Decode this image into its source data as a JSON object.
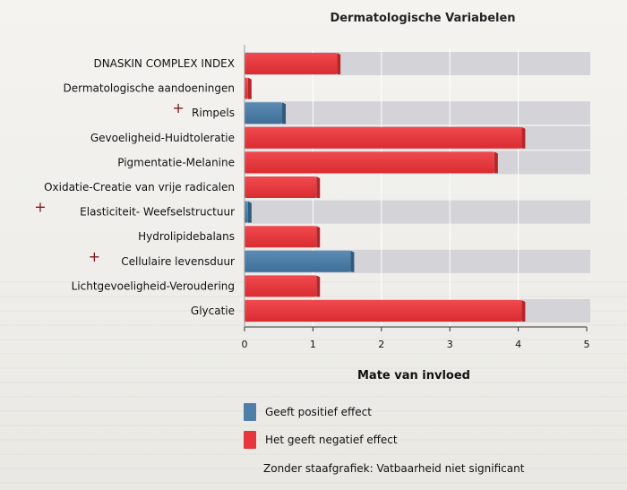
{
  "chart_data": {
    "type": "bar",
    "orientation": "horizontal",
    "title": "Dermatologische Variabelen",
    "xlabel": "Mate van invloed",
    "ylabel": "",
    "xlim": [
      0,
      5
    ],
    "xticks": [
      "0",
      "1",
      "2",
      "3",
      "4",
      "5"
    ],
    "categories": [
      "DNASKIN COMPLEX INDEX",
      "Dermatologische aandoeningen",
      "Rimpels",
      "Gevoeligheid-Huidtoleratie",
      "Pigmentatie-Melanine",
      "Oxidatie-Creatie van vrije radicalen",
      "Elasticiteit- Weefselstructuur",
      "Hydrolipidebalans",
      "Cellulaire levensduur",
      "Lichtgevoeligheid-Veroudering",
      "Glycatie"
    ],
    "values": [
      1.35,
      0.05,
      0.55,
      4.05,
      3.65,
      1.05,
      0.05,
      1.05,
      1.55,
      1.05,
      4.05
    ],
    "effects": [
      "negative",
      "negative",
      "positive",
      "negative",
      "negative",
      "negative",
      "positive",
      "negative",
      "positive",
      "negative",
      "negative"
    ],
    "background_bar": [
      true,
      false,
      true,
      true,
      true,
      false,
      true,
      false,
      true,
      false,
      true
    ],
    "handwritten_marks": [
      false,
      false,
      true,
      false,
      false,
      false,
      true,
      false,
      true,
      false,
      false
    ],
    "mark_glyph": "+",
    "colors": {
      "positive": "#4d7fa8",
      "negative": "#e8373c",
      "background": "#d3d3d8",
      "grid": "#ffffff",
      "mark": "#7a1a1a"
    },
    "legend": [
      {
        "label": "Geeft positief effect",
        "effect": "positive"
      },
      {
        "label": "Het geeft negatief effect",
        "effect": "negative"
      }
    ],
    "note": "Zonder staafgrafiek: Vatbaarheid niet significant"
  }
}
